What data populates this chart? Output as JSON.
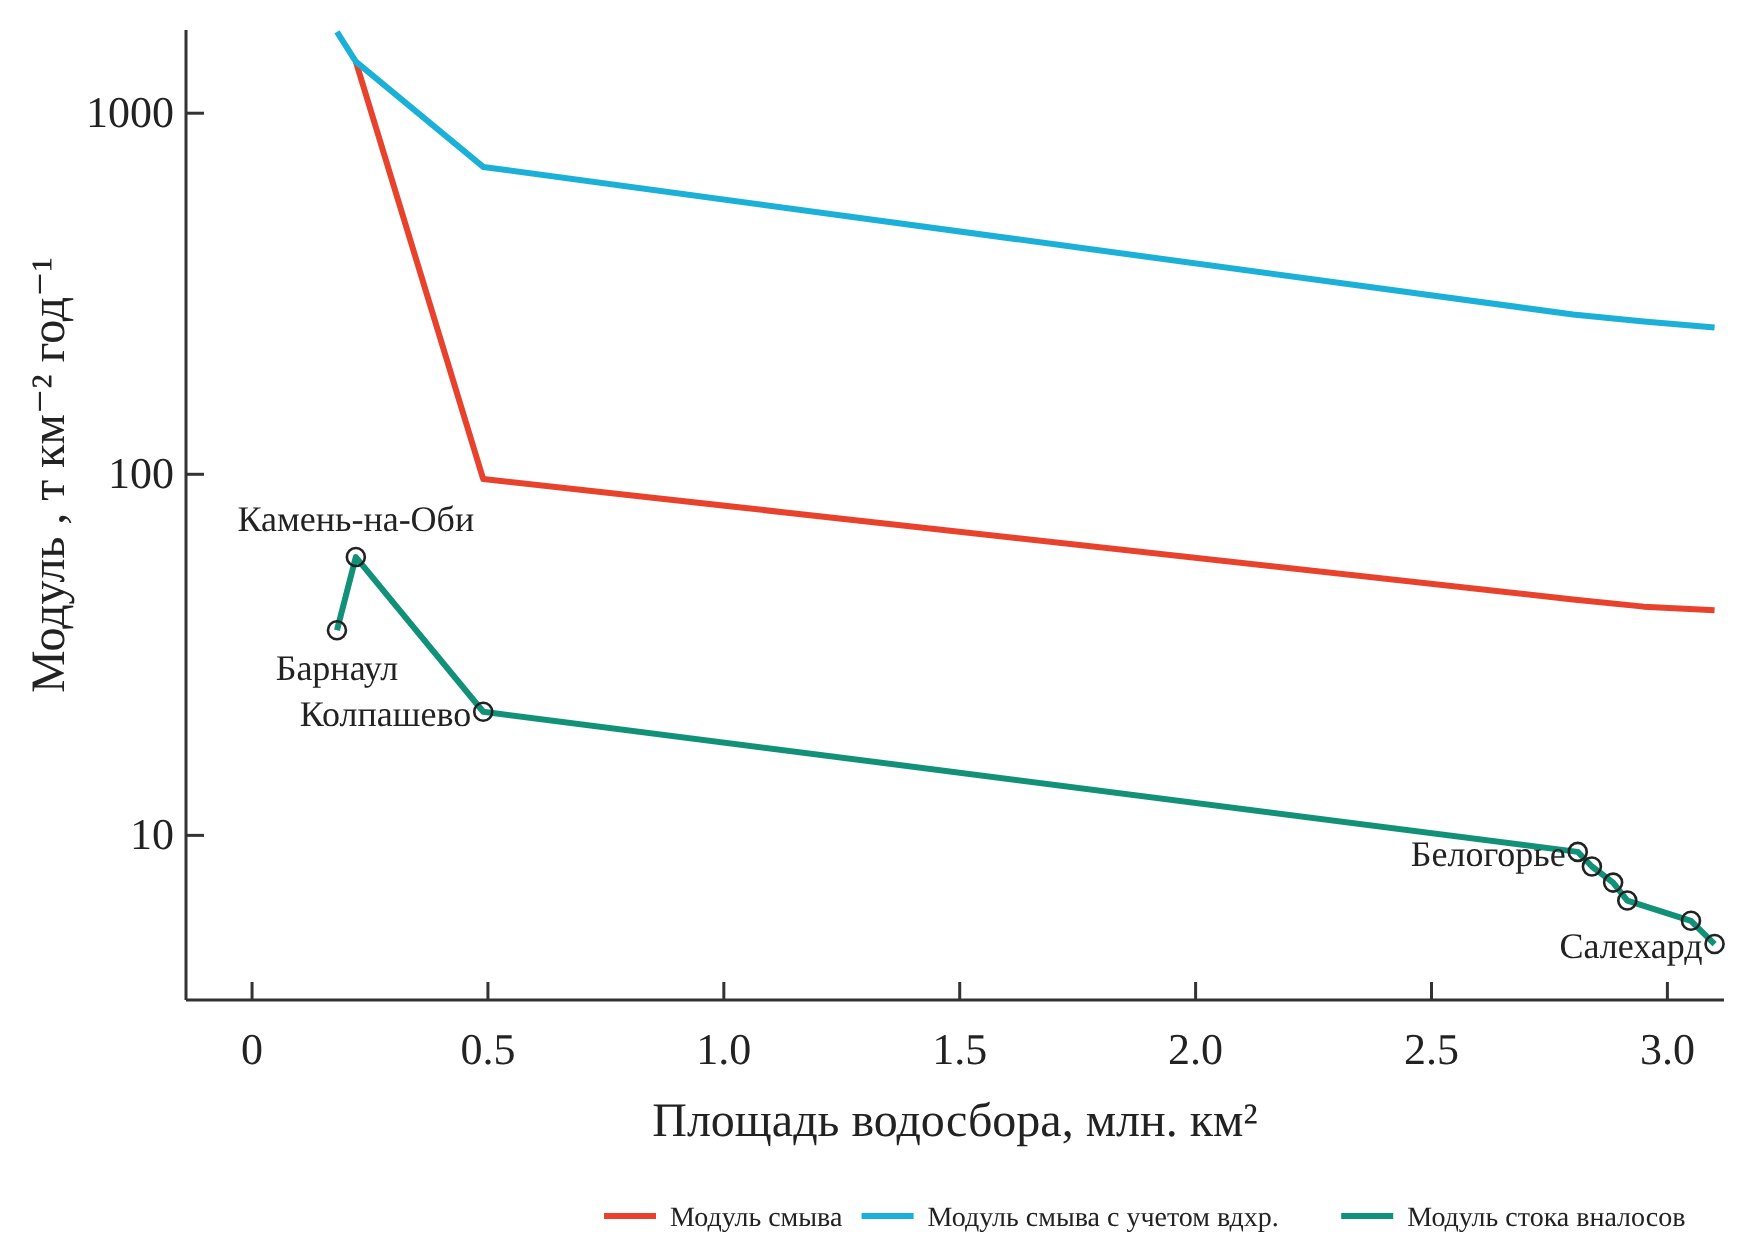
{
  "chart_data": {
    "type": "line",
    "xlabel": "Площадь водосбора, млн. км²",
    "ylabel": "Модуль , т км⁻² год⁻¹",
    "log": "y",
    "xlim": [
      -0.14,
      3.12
    ],
    "ylim": [
      3.5,
      1700
    ],
    "xticks": [
      0,
      0.5,
      {
        "value": 1,
        "label": "1.0"
      },
      1.5,
      {
        "value": 2,
        "label": "2.0"
      },
      2.5,
      {
        "value": 3,
        "label": "3.0"
      }
    ],
    "yticks": [
      10,
      100,
      1000
    ],
    "grid": false,
    "legend": "bottom right",
    "line_style": "solid",
    "series": [
      {
        "name": "Модуль смыва",
        "color": "#e8412c",
        "marker": "none",
        "x": [
          0.22,
          0.49,
          2.8,
          2.95,
          3.1
        ],
        "values": [
          1390,
          97,
          45,
          43,
          42
        ]
      },
      {
        "name": "Модуль смыва с учетом вдхр.",
        "color": "#1ab0d8",
        "marker": "none",
        "x": [
          0.18,
          0.22,
          0.49,
          2.8,
          2.95,
          3.1
        ],
        "values": [
          1680,
          1390,
          710,
          277,
          265,
          255
        ]
      },
      {
        "name": "Модуль стока вналосов",
        "color": "#119178",
        "marker": "circle",
        "x": [
          0.18,
          0.22,
          0.49,
          2.81,
          2.84,
          2.885,
          2.915,
          3.05,
          3.1
        ],
        "values": [
          37,
          59,
          22,
          9.0,
          8.2,
          7.4,
          6.6,
          5.8,
          5.0
        ]
      }
    ],
    "annotations": [
      {
        "text": "Барнаул",
        "x": 0.18,
        "y": 37
      },
      {
        "text": "Камень-на-Оби",
        "x": 0.22,
        "y": 59
      },
      {
        "text": "Колпашево",
        "x": 0.49,
        "y": 22
      },
      {
        "text": "Белогорье",
        "x": 2.81,
        "y": 9.0
      },
      {
        "text": "Салехард",
        "x": 3.1,
        "y": 5.0
      }
    ]
  }
}
